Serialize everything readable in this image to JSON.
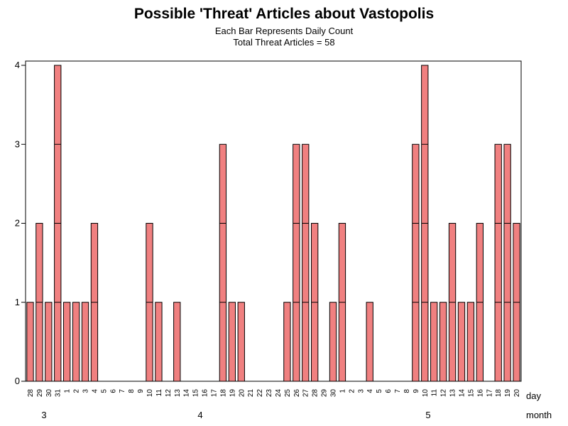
{
  "chart_data": {
    "type": "bar",
    "title": "Possible 'Threat' Articles about Vastopolis",
    "subtitle": "Each Bar Represents Daily Count",
    "subtitle2": "Total Threat Articles = 58",
    "xlabel_day": "day",
    "xlabel_month": "month",
    "ylim": [
      0,
      4
    ],
    "yticks": [
      "0",
      "1",
      "2",
      "3",
      "4"
    ],
    "bar_color": "#f08080",
    "days": [
      "28",
      "29",
      "30",
      "31",
      "1",
      "2",
      "3",
      "4",
      "5",
      "6",
      "7",
      "8",
      "9",
      "10",
      "11",
      "12",
      "13",
      "14",
      "15",
      "16",
      "17",
      "18",
      "19",
      "20",
      "21",
      "22",
      "23",
      "24",
      "25",
      "26",
      "27",
      "28",
      "29",
      "30",
      "1",
      "2",
      "3",
      "4",
      "5",
      "6",
      "7",
      "8",
      "9",
      "10",
      "11",
      "12",
      "13",
      "14",
      "15",
      "16",
      "17",
      "18",
      "19",
      "20"
    ],
    "values": [
      1,
      2,
      1,
      4,
      1,
      1,
      1,
      2,
      0,
      0,
      0,
      0,
      0,
      2,
      1,
      0,
      1,
      0,
      0,
      0,
      0,
      3,
      1,
      1,
      0,
      0,
      0,
      0,
      1,
      3,
      3,
      2,
      0,
      1,
      2,
      0,
      0,
      1,
      0,
      0,
      0,
      0,
      3,
      4,
      1,
      1,
      2,
      1,
      1,
      2,
      0,
      3,
      3,
      2
    ],
    "months": [
      {
        "label": "3",
        "start_index": 0,
        "end_index": 7
      },
      {
        "label": "4",
        "start_index": 8,
        "end_index": 33
      },
      {
        "label": "5",
        "start_index": 34,
        "end_index": 53
      }
    ]
  }
}
